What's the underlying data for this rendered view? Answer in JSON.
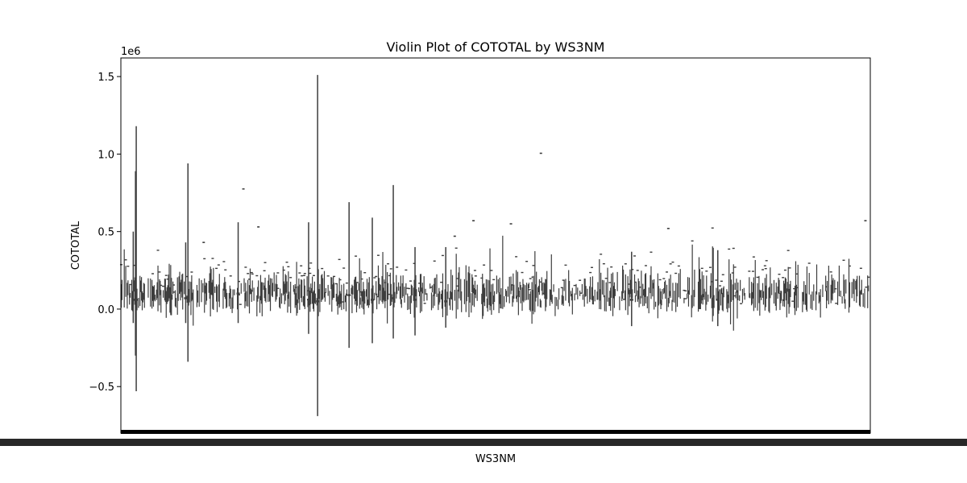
{
  "chart_data": {
    "type": "violin",
    "title": "Violin Plot of COTOTAL by WS3NM",
    "xlabel": "WS3NM",
    "ylabel": "COTOTAL",
    "y_scale_label": "1e6",
    "ylim": [
      -800000,
      1620000
    ],
    "yticks": [
      -500000,
      0,
      500000,
      1000000,
      1500000
    ],
    "ytick_labels": [
      "−0.5",
      "0.0",
      "0.5",
      "1.0",
      "1.5"
    ],
    "x_tick_labels_note": "",
    "n_categories": 1000,
    "legend": "none",
    "grid": false,
    "colors": {
      "violin_stroke": "#3d3d3d",
      "tick_band": "#000000",
      "axes": "#000000"
    },
    "highlight_ranges": [
      {
        "category": 20,
        "min": -530000,
        "max": 1180000,
        "median": 60000
      },
      {
        "category": 262,
        "min": -690000,
        "max": 1510000,
        "median": 50000
      },
      {
        "category": 89,
        "min": -340000,
        "max": 940000,
        "median": 80000
      },
      {
        "category": 19,
        "min": -300000,
        "max": 890000,
        "median": 60000
      },
      {
        "category": 363,
        "min": -190000,
        "max": 800000,
        "median": 70000
      },
      {
        "category": 304,
        "min": -250000,
        "max": 690000,
        "median": 90000
      },
      {
        "category": 335,
        "min": -220000,
        "max": 590000,
        "median": 60000
      },
      {
        "category": 250,
        "min": -160000,
        "max": 560000,
        "median": 60000
      },
      {
        "category": 156,
        "min": -90000,
        "max": 560000,
        "median": 100000
      },
      {
        "category": 392,
        "min": -170000,
        "max": 400000,
        "median": 60000
      },
      {
        "category": 433,
        "min": -120000,
        "max": 400000,
        "median": 50000
      },
      {
        "category": 681,
        "min": -110000,
        "max": 370000,
        "median": 60000
      },
      {
        "category": 796,
        "min": -110000,
        "max": 380000,
        "median": 60000
      },
      {
        "category": 86,
        "min": -90000,
        "max": 430000,
        "median": 70000
      },
      {
        "category": 16,
        "min": -90000,
        "max": 500000,
        "median": 60000
      }
    ],
    "outliers": [
      {
        "category": 560,
        "value": 1005000
      },
      {
        "category": 163,
        "value": 775000
      },
      {
        "category": 183,
        "value": 530000
      },
      {
        "category": 470,
        "value": 570000
      },
      {
        "category": 520,
        "value": 550000
      },
      {
        "category": 730,
        "value": 520000
      },
      {
        "category": 993,
        "value": 570000
      },
      {
        "category": 445,
        "value": 470000
      },
      {
        "category": 110,
        "value": 430000
      }
    ]
  }
}
